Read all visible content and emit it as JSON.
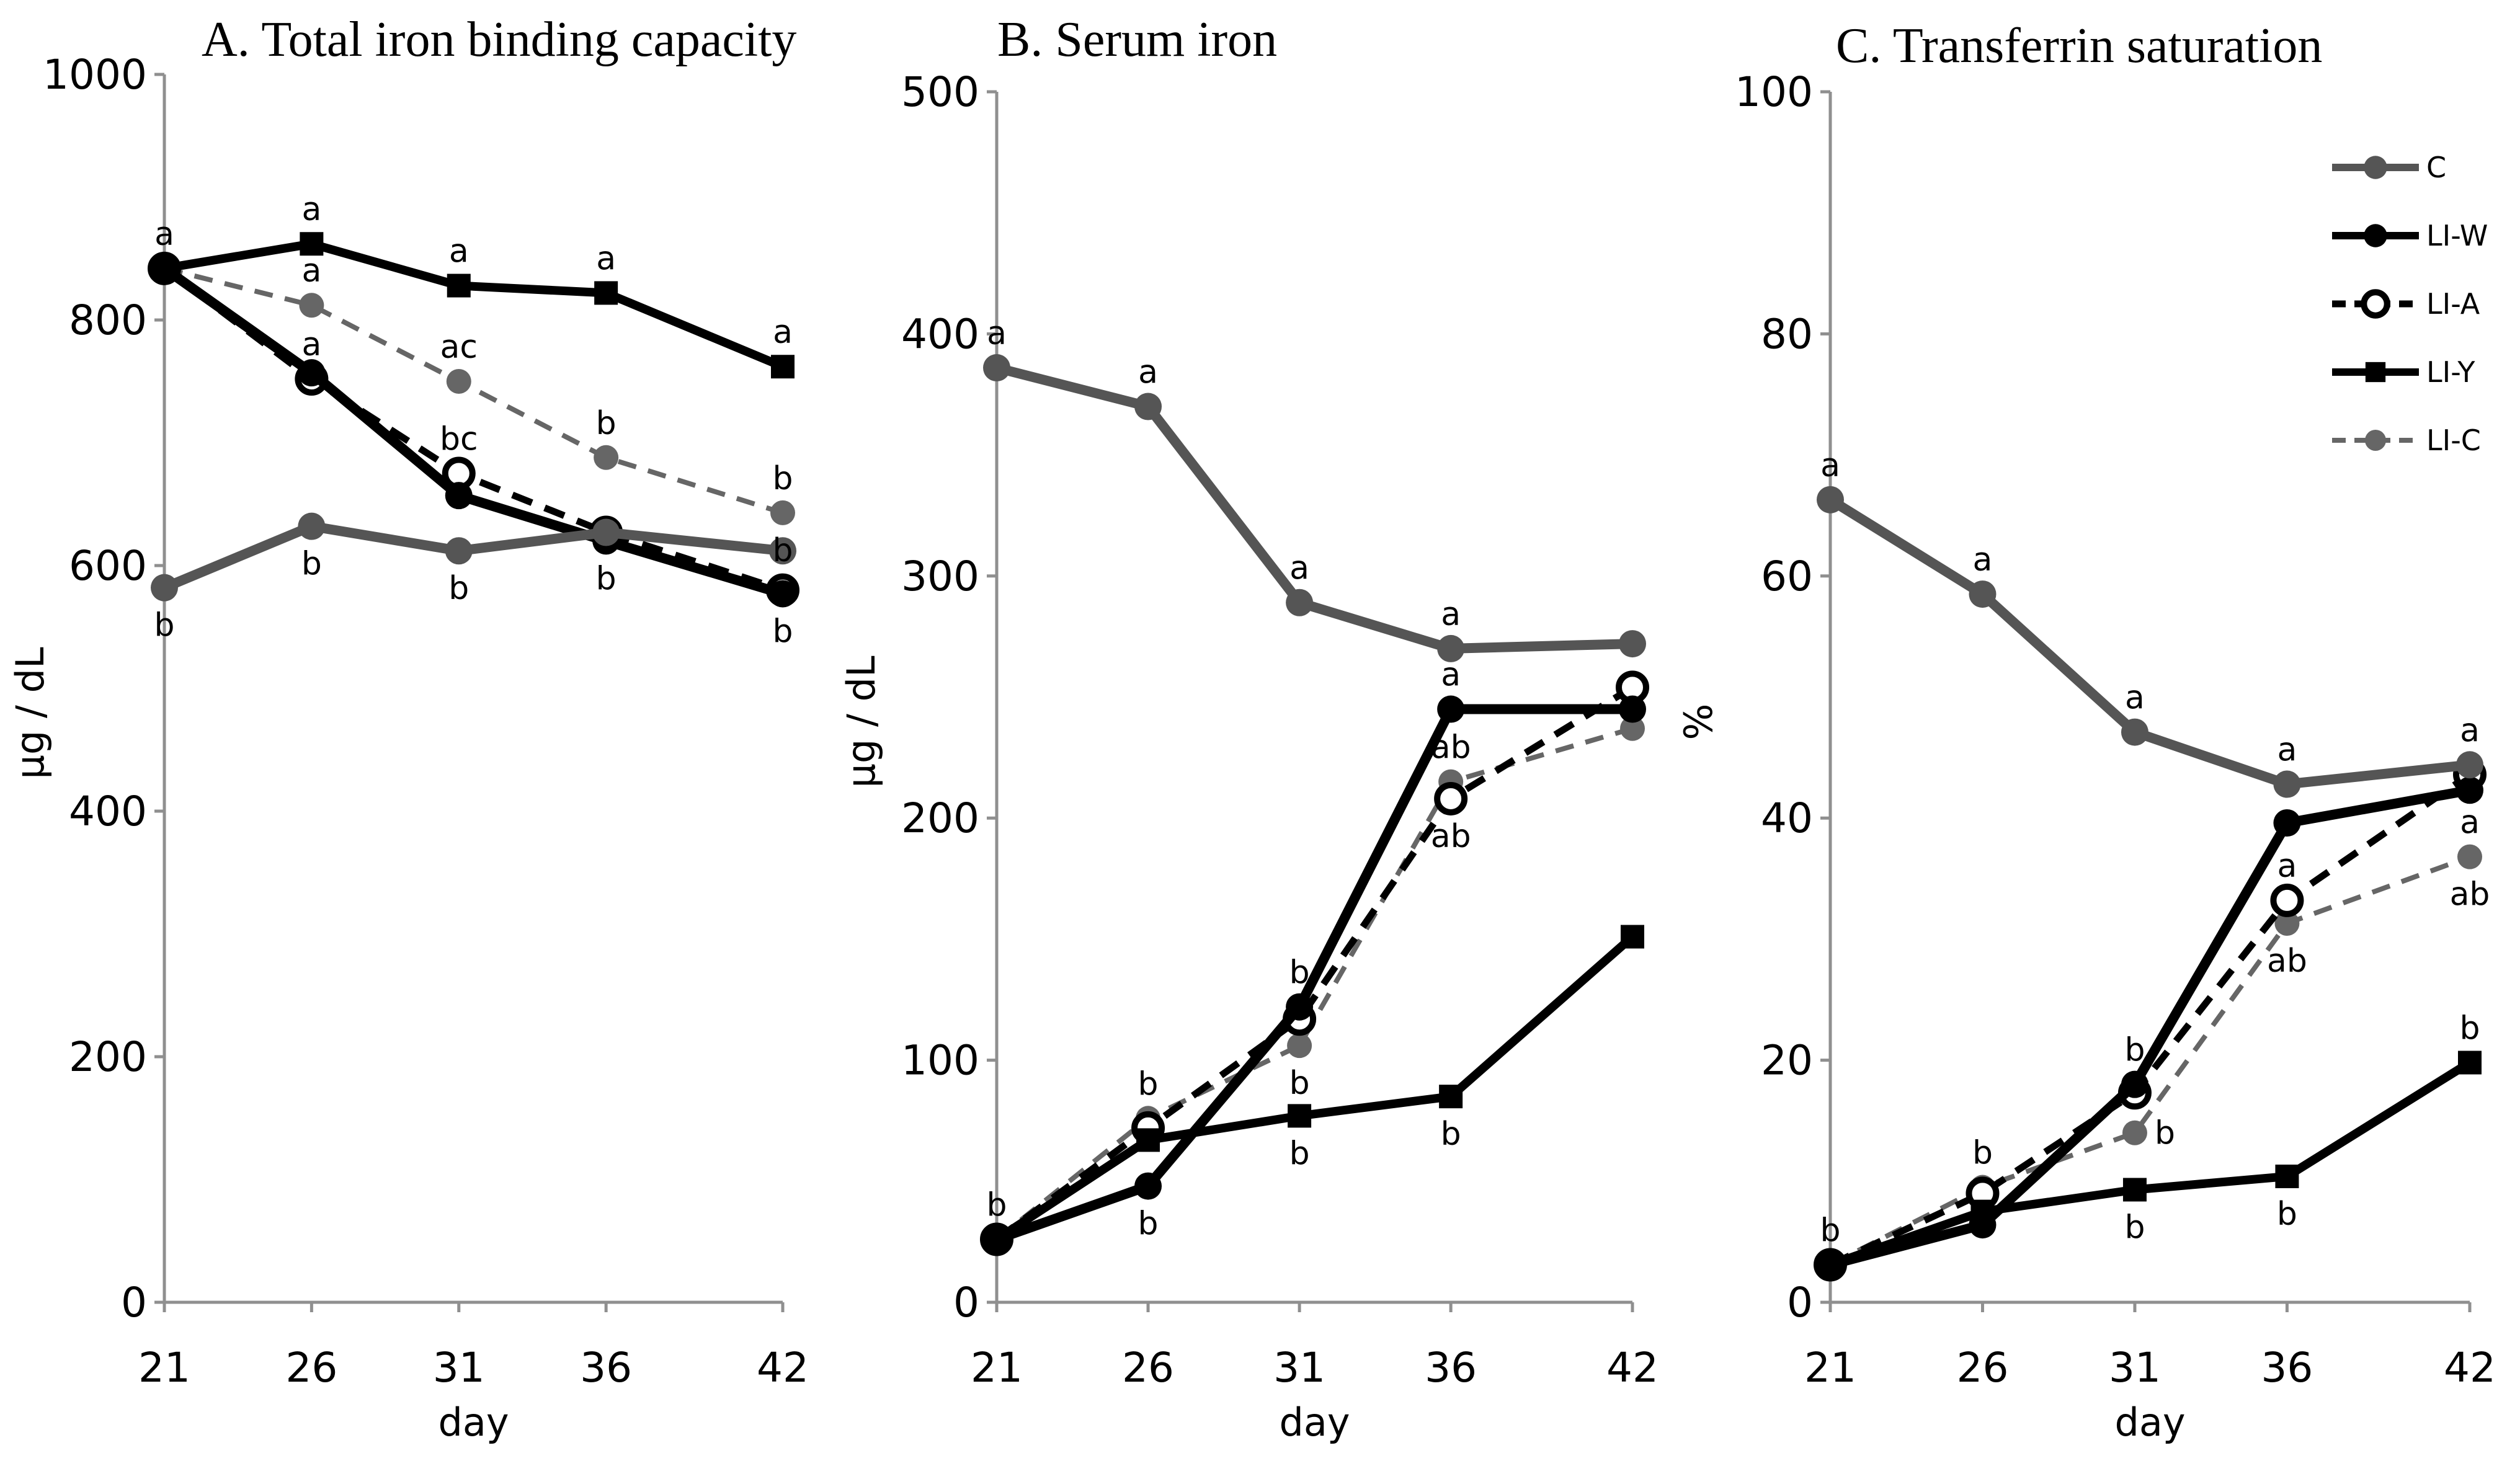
{
  "colors": {
    "C": "#555555",
    "LI-W": "#000000",
    "LI-A": "#000000",
    "LI-Y": "#000000",
    "LI-C": "#666666",
    "axis": "#8f8f8f"
  },
  "legend": {
    "position": "top-right of panel C",
    "entries": [
      "C",
      "LI-W",
      "LI-A",
      "LI-Y",
      "LI-C"
    ]
  },
  "chart_data": [
    {
      "type": "line",
      "title": "A. Total iron binding capacity",
      "xlabel": "day",
      "ylabel": "μg / dL",
      "x": [
        21,
        26,
        31,
        36,
        42
      ],
      "xticks": [
        "21",
        "26",
        "31",
        "36",
        "42"
      ],
      "ylim": [
        0,
        1000
      ],
      "yticks": [
        "0",
        "200",
        "400",
        "600",
        "800",
        "1000"
      ],
      "series": [
        {
          "name": "C",
          "values": [
            582,
            632,
            612,
            627,
            612
          ]
        },
        {
          "name": "LI-W",
          "values": [
            842,
            757,
            657,
            620,
            577
          ]
        },
        {
          "name": "LI-A",
          "values": [
            842,
            752,
            675,
            627,
            580
          ]
        },
        {
          "name": "LI-Y",
          "values": [
            842,
            862,
            828,
            822,
            762
          ]
        },
        {
          "name": "LI-C",
          "values": [
            842,
            812,
            750,
            688,
            643
          ]
        }
      ],
      "annotations": [
        {
          "x": 21,
          "y": 842,
          "text": "a",
          "pos": "above"
        },
        {
          "x": 26,
          "y": 862,
          "text": "a",
          "pos": "above"
        },
        {
          "x": 26,
          "y": 812,
          "text": "a",
          "pos": "above"
        },
        {
          "x": 26,
          "y": 752,
          "text": "a",
          "pos": "above"
        },
        {
          "x": 31,
          "y": 828,
          "text": "a",
          "pos": "above"
        },
        {
          "x": 31,
          "y": 750,
          "text": "ac",
          "pos": "above"
        },
        {
          "x": 31,
          "y": 675,
          "text": "bc",
          "pos": "above"
        },
        {
          "x": 36,
          "y": 822,
          "text": "a",
          "pos": "above"
        },
        {
          "x": 36,
          "y": 688,
          "text": "b",
          "pos": "above"
        },
        {
          "x": 42,
          "y": 762,
          "text": "a",
          "pos": "above"
        },
        {
          "x": 42,
          "y": 643,
          "text": "b",
          "pos": "above"
        },
        {
          "x": 42,
          "y": 643,
          "text": "b",
          "pos": "below"
        },
        {
          "x": 21,
          "y": 582,
          "text": "b",
          "pos": "below"
        },
        {
          "x": 26,
          "y": 632,
          "text": "b",
          "pos": "below"
        },
        {
          "x": 31,
          "y": 612,
          "text": "b",
          "pos": "below"
        },
        {
          "x": 36,
          "y": 620,
          "text": "b",
          "pos": "below"
        },
        {
          "x": 42,
          "y": 577,
          "text": "b",
          "pos": "below"
        }
      ]
    },
    {
      "type": "line",
      "title": "B. Serum iron",
      "xlabel": "day",
      "ylabel": "μg / dL",
      "x": [
        21,
        26,
        31,
        36,
        42
      ],
      "xticks": [
        "21",
        "26",
        "31",
        "36",
        "42"
      ],
      "ylim": [
        0,
        500
      ],
      "yticks": [
        "0",
        "100",
        "200",
        "300",
        "400",
        "500"
      ],
      "series": [
        {
          "name": "C",
          "values": [
            386,
            370,
            289,
            270,
            272
          ]
        },
        {
          "name": "LI-W",
          "values": [
            26,
            48,
            122,
            245,
            245
          ]
        },
        {
          "name": "LI-A",
          "values": [
            26,
            72,
            117,
            208,
            254
          ]
        },
        {
          "name": "LI-Y",
          "values": [
            26,
            67,
            77,
            85,
            151
          ]
        },
        {
          "name": "LI-C",
          "values": [
            26,
            76,
            106,
            215,
            237
          ]
        }
      ],
      "annotations": [
        {
          "x": 21,
          "y": 386,
          "text": "a",
          "pos": "above"
        },
        {
          "x": 26,
          "y": 370,
          "text": "a",
          "pos": "above"
        },
        {
          "x": 31,
          "y": 289,
          "text": "a",
          "pos": "above"
        },
        {
          "x": 36,
          "y": 270,
          "text": "a",
          "pos": "above"
        },
        {
          "x": 36,
          "y": 245,
          "text": "a",
          "pos": "above"
        },
        {
          "x": 36,
          "y": 215,
          "text": "ab",
          "pos": "above"
        },
        {
          "x": 36,
          "y": 208,
          "text": "ab",
          "pos": "below"
        },
        {
          "x": 21,
          "y": 26,
          "text": "b",
          "pos": "above"
        },
        {
          "x": 26,
          "y": 76,
          "text": "b",
          "pos": "above"
        },
        {
          "x": 31,
          "y": 122,
          "text": "b",
          "pos": "above"
        },
        {
          "x": 31,
          "y": 106,
          "text": "b",
          "pos": "below"
        },
        {
          "x": 31,
          "y": 77,
          "text": "b",
          "pos": "below"
        },
        {
          "x": 26,
          "y": 48,
          "text": "b",
          "pos": "below"
        },
        {
          "x": 36,
          "y": 85,
          "text": "b",
          "pos": "below"
        }
      ]
    },
    {
      "type": "line",
      "title": "C. Transferrin saturation",
      "xlabel": "day",
      "ylabel": "%",
      "x": [
        21,
        26,
        31,
        36,
        42
      ],
      "xticks": [
        "21",
        "26",
        "31",
        "36",
        "42"
      ],
      "ylim": [
        0,
        100
      ],
      "yticks": [
        "0",
        "20",
        "40",
        "60",
        "80",
        "100"
      ],
      "series": [
        {
          "name": "C",
          "values": [
            66.3,
            58.5,
            47.1,
            42.8,
            44.4
          ]
        },
        {
          "name": "LI-W",
          "values": [
            3.1,
            6.4,
            18.0,
            39.6,
            42.3
          ]
        },
        {
          "name": "LI-A",
          "values": [
            3.1,
            9.0,
            17.3,
            33.2,
            43.6
          ]
        },
        {
          "name": "LI-Y",
          "values": [
            3.1,
            7.5,
            9.3,
            10.4,
            19.8
          ]
        },
        {
          "name": "LI-C",
          "values": [
            3.1,
            9.5,
            14.0,
            31.3,
            36.8
          ]
        }
      ],
      "annotations": [
        {
          "x": 21,
          "y": 66.3,
          "text": "a",
          "pos": "above"
        },
        {
          "x": 26,
          "y": 58.5,
          "text": "a",
          "pos": "above"
        },
        {
          "x": 31,
          "y": 47.1,
          "text": "a",
          "pos": "above"
        },
        {
          "x": 36,
          "y": 42.8,
          "text": "a",
          "pos": "above"
        },
        {
          "x": 42,
          "y": 44.4,
          "text": "a",
          "pos": "above"
        },
        {
          "x": 42,
          "y": 36.8,
          "text": "a",
          "pos": "above"
        },
        {
          "x": 42,
          "y": 36.8,
          "text": "ab",
          "pos": "below"
        },
        {
          "x": 36,
          "y": 33.2,
          "text": "a",
          "pos": "above"
        },
        {
          "x": 36,
          "y": 31.3,
          "text": "ab",
          "pos": "below"
        },
        {
          "x": 21,
          "y": 3.1,
          "text": "b",
          "pos": "above"
        },
        {
          "x": 26,
          "y": 9.5,
          "text": "b",
          "pos": "above"
        },
        {
          "x": 31,
          "y": 18.0,
          "text": "b",
          "pos": "above"
        },
        {
          "x": 31,
          "y": 14.0,
          "text": "b",
          "pos": "right"
        },
        {
          "x": 31,
          "y": 9.3,
          "text": "b",
          "pos": "below"
        },
        {
          "x": 36,
          "y": 10.4,
          "text": "b",
          "pos": "below"
        },
        {
          "x": 42,
          "y": 19.8,
          "text": "b",
          "pos": "above"
        }
      ]
    }
  ]
}
